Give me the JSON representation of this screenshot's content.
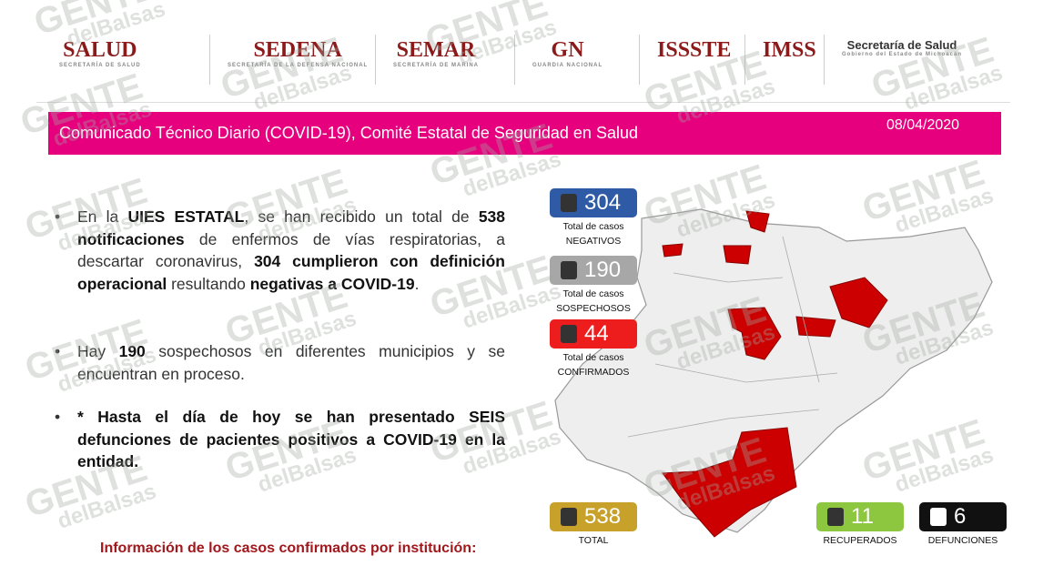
{
  "header": {
    "logos": [
      {
        "name": "SALUD",
        "sub": "SECRETARÍA DE SALUD"
      },
      {
        "name": "SEDENA",
        "sub": "SECRETARÍA DE LA DEFENSA NACIONAL"
      },
      {
        "name": "SEMAR",
        "sub": "SECRETARÍA DE MARINA"
      },
      {
        "name": "GN",
        "sub": "GUARDIA NACIONAL"
      },
      {
        "name": "ISSSTE",
        "sub": ""
      },
      {
        "name": "IMSS",
        "sub": ""
      },
      {
        "name": "Secretaría de Salud",
        "sub": "Gobierno del Estado de Michoacán"
      }
    ]
  },
  "banner": {
    "title": "Comunicado Técnico Diario (COVID-19), Comité Estatal de Seguridad en Salud",
    "date": "08/04/2020"
  },
  "bullets": [
    {
      "segments": [
        {
          "text": "En la ",
          "bold": false
        },
        {
          "text": "UIES ESTATAL",
          "bold": true
        },
        {
          "text": ", se han recibido un total de ",
          "bold": false
        },
        {
          "text": "538 notificaciones",
          "bold": true
        },
        {
          "text": " de enfermos de vías respiratorias, a descartar coronavirus, ",
          "bold": false
        },
        {
          "text": "304 cumplieron con definición operacional",
          "bold": true
        },
        {
          "text": " resultando ",
          "bold": false
        },
        {
          "text": "negativas a COVID-19",
          "bold": true
        },
        {
          "text": ".",
          "bold": false
        }
      ]
    },
    {
      "segments": [
        {
          "text": "Hay ",
          "bold": false
        },
        {
          "text": "190",
          "bold": true
        },
        {
          "text": " sospechosos en diferentes municipios y se encuentran en proceso.",
          "bold": false
        }
      ]
    },
    {
      "segments": [
        {
          "text": "* Hasta el día de hoy se han presentado SEIS defunciones de pacientes positivos a COVID-19 en la entidad.",
          "bold": true
        }
      ]
    }
  ],
  "stats": [
    {
      "value": "304",
      "label1": "Total de casos",
      "label2": "NEGATIVOS",
      "color": "#2f5ba6"
    },
    {
      "value": "190",
      "label1": "Total de casos",
      "label2": "SOSPECHOSOS",
      "color": "#a7a7a7"
    },
    {
      "value": "44",
      "label1": "Total de casos",
      "label2": "CONFIRMADOS",
      "color": "#ee1d1d"
    },
    {
      "value": "538",
      "label1": "TOTAL",
      "label2": "",
      "color": "#c8a12a"
    },
    {
      "value": "11",
      "label1": "RECUPERADOS",
      "label2": "",
      "color": "#8dc63f"
    },
    {
      "value": "6",
      "label1": "DEFUNCIONES",
      "label2": "",
      "color": "#111111"
    }
  ],
  "footer": {
    "title": "Información de los casos confirmados por institución:"
  },
  "watermark": {
    "top": "GENTE",
    "bottom": "delBalsas"
  }
}
